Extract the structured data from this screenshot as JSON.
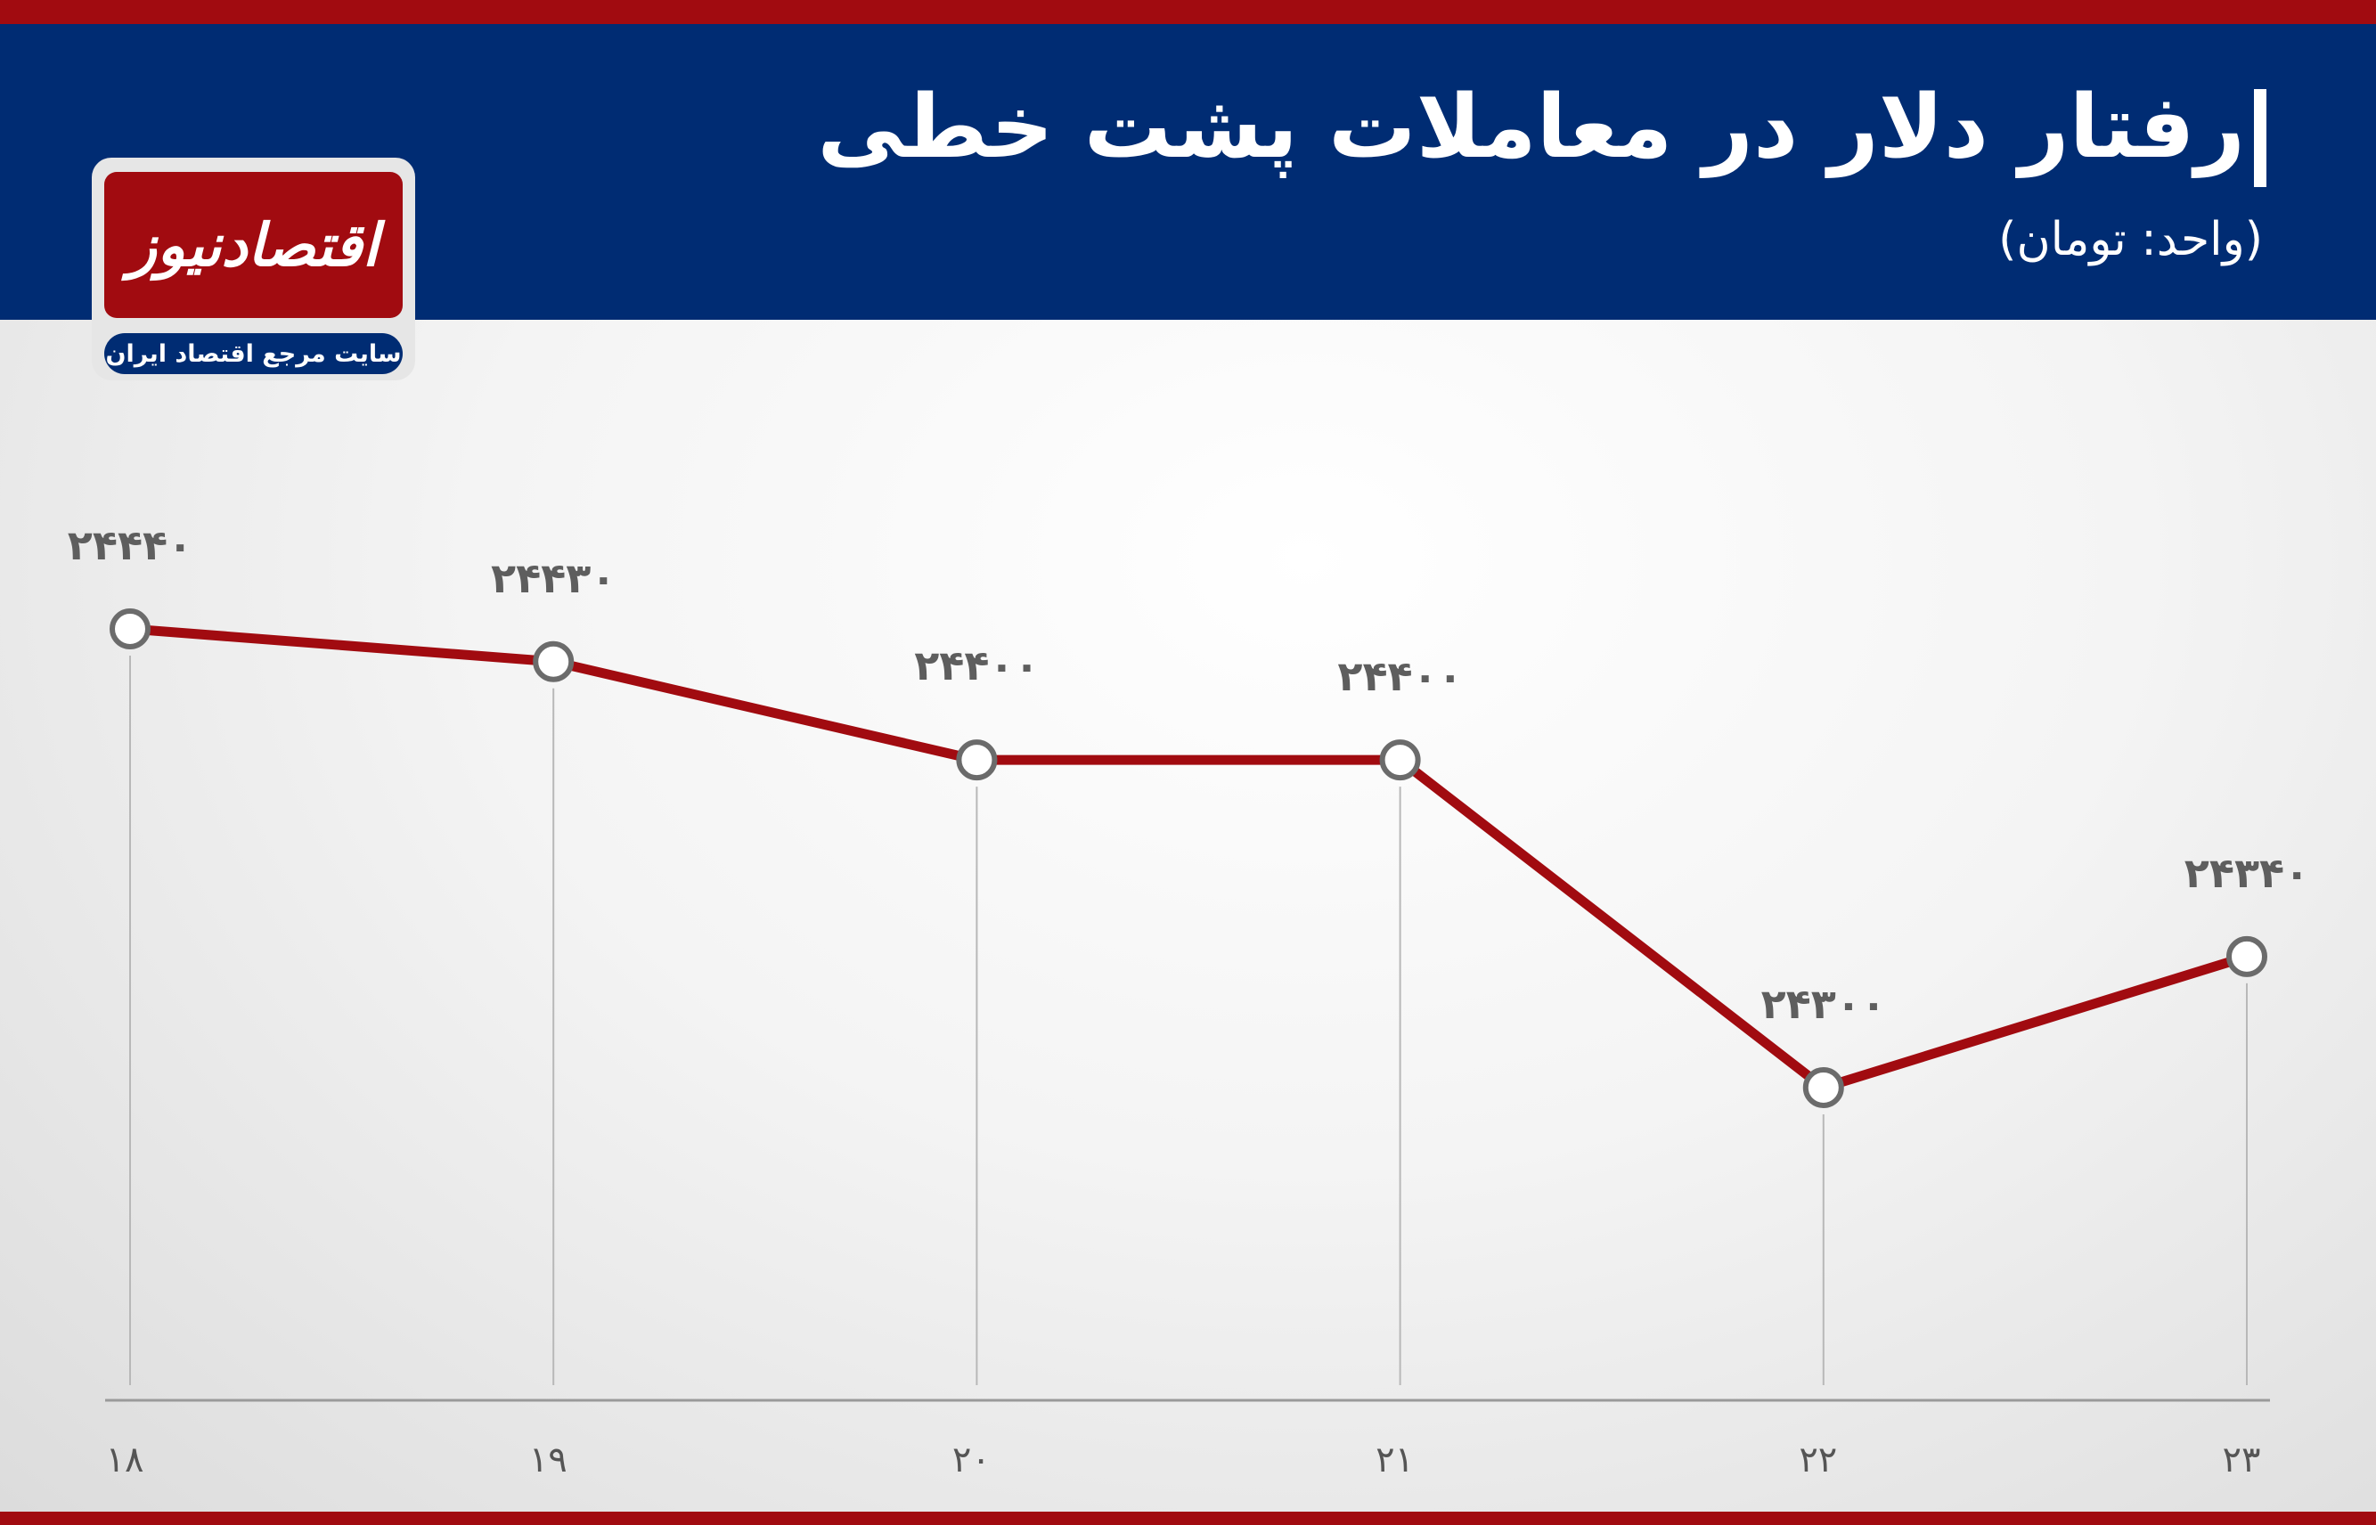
{
  "header": {
    "title": "رفتار دلار در معاملات پشت خطی",
    "subtitle": "(واحد: تومان)"
  },
  "logo": {
    "name": "اقتصادنیوز",
    "tagline": "سایت مرجع اقتصاد ایران"
  },
  "colors": {
    "header_bg": "#002c73",
    "accent_red": "#a10b10",
    "line": "#a10b10",
    "marker_stroke": "#6b6b6b",
    "label": "#5e5e5e"
  },
  "chart_data": {
    "type": "line",
    "categories": [
      "۱۸",
      "۱۹",
      "۲۰",
      "۲۱",
      "۲۲",
      "۲۳"
    ],
    "values": [
      24440,
      24430,
      24400,
      24400,
      24300,
      24340
    ],
    "data_labels": [
      "۲۴۴۴۰",
      "۲۴۴۳۰",
      "۲۴۴۰۰",
      "۲۴۴۰۰",
      "۲۴۳۰۰",
      "۲۴۳۴۰"
    ],
    "title": "رفتار دلار در معاملات پشت خطی",
    "subtitle": "(واحد: تومان)",
    "xlabel": "",
    "ylabel": "",
    "grid": "vertical",
    "legend": "none"
  }
}
